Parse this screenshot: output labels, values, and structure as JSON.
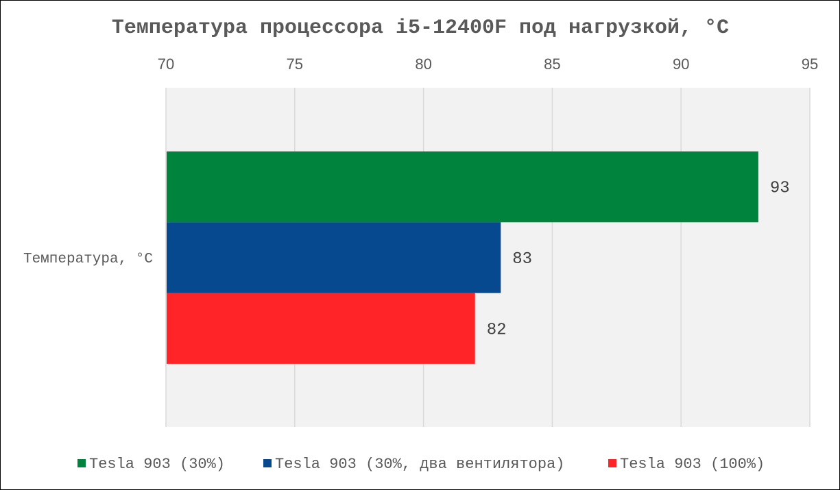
{
  "chart_data": {
    "type": "bar",
    "orientation": "horizontal",
    "title": "Температура процессора i5-12400F под нагрузкой, °C",
    "categories": [
      "Температура, °C"
    ],
    "series": [
      {
        "name": "Tesla 903 (30%)",
        "values": [
          93
        ],
        "color": "#00843D"
      },
      {
        "name": "Tesla 903 (30%, два вентилятора)",
        "values": [
          83
        ],
        "color": "#06498E"
      },
      {
        "name": "Tesla 903 (100%)",
        "values": [
          82
        ],
        "color": "#FF2427"
      }
    ],
    "xlim": [
      70,
      95
    ],
    "x_ticks": [
      "70",
      "75",
      "80",
      "85",
      "90",
      "95"
    ],
    "axis_position": "top",
    "grid": true,
    "plot_background": "#F2F2F2",
    "legend": "bottom",
    "data_labels": true
  }
}
